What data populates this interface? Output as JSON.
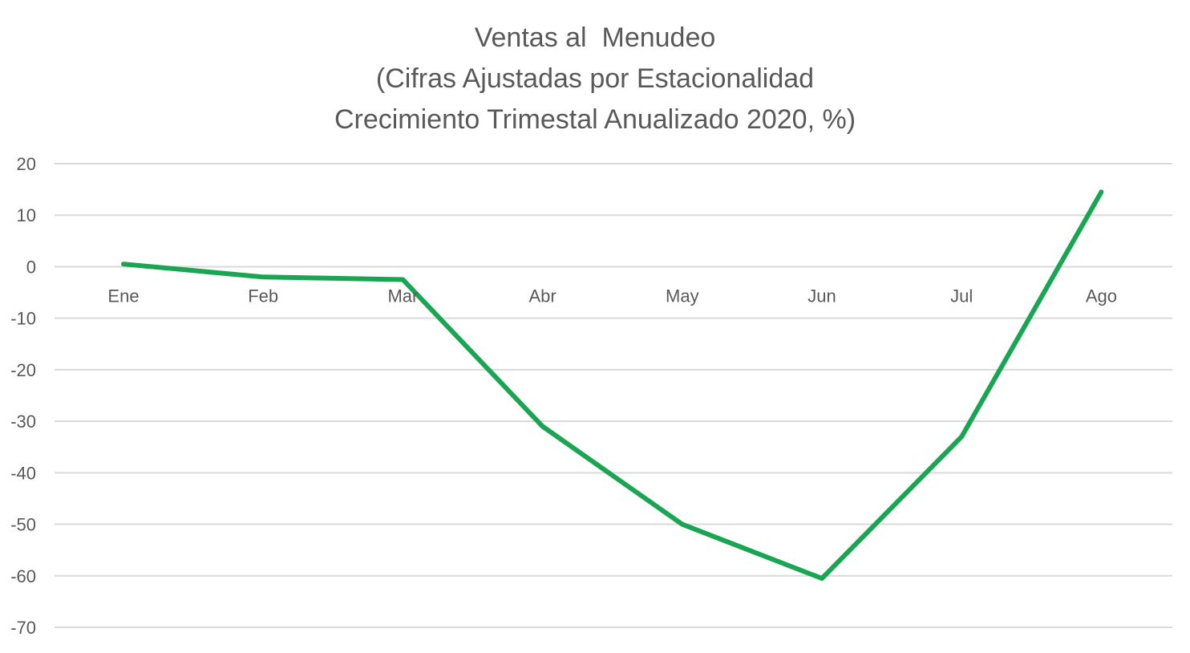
{
  "chart_data": {
    "type": "line",
    "title_lines": [
      "Ventas al  Menudeo",
      "(Cifras Ajustadas por Estacionalidad",
      "Crecimiento Trimestal Anualizado 2020, %)"
    ],
    "categories": [
      "Ene",
      "Feb",
      "Mar",
      "Abr",
      "May",
      "Jun",
      "Jul",
      "Ago"
    ],
    "series": [
      {
        "values": [
          0.5,
          -2,
          -2.5,
          -31,
          -50,
          -60.5,
          -33,
          14.5
        ],
        "color": "#1aa553"
      }
    ],
    "ylim": [
      -70,
      20
    ],
    "yticks": [
      20,
      10,
      0,
      -10,
      -20,
      -30,
      -40,
      -50,
      -60,
      -70
    ],
    "grid": true,
    "legend": "none"
  }
}
